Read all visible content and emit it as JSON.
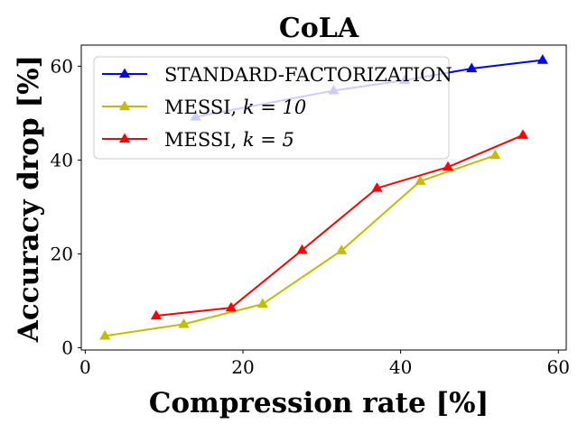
{
  "chart_data": {
    "type": "line",
    "title": "CoLA",
    "xlabel": "Compression rate [%]",
    "ylabel": "Accuracy drop [%]",
    "xlim": [
      -0.5,
      61
    ],
    "ylim": [
      -0.5,
      64.5
    ],
    "xticks": [
      0,
      20,
      40,
      60
    ],
    "yticks": [
      0,
      20,
      40,
      60
    ],
    "xtick_labels": [
      "0",
      "20",
      "40",
      "60"
    ],
    "ytick_labels": [
      "0",
      "20",
      "40",
      "60"
    ],
    "legend_position": "upper-left",
    "series": [
      {
        "name": "Standard-Factorization",
        "legend_label": "STANDARD-FACTORIZATION",
        "color": "#0000ff",
        "marker": "triangle-up",
        "x": [
          14,
          31.5,
          40.5,
          49,
          58
        ],
        "y": [
          49.2,
          54.8,
          57.0,
          59.5,
          61.3
        ]
      },
      {
        "name": "MESSI, k=10",
        "legend_text": "MESSI,",
        "legend_math": "k = 10",
        "color": "#bfbf00",
        "marker": "triangle-up",
        "x": [
          2.5,
          12.5,
          22.5,
          32.5,
          42.5,
          52
        ],
        "y": [
          2.5,
          5.0,
          9.3,
          20.7,
          35.5,
          41.0
        ]
      },
      {
        "name": "MESSI, k=5",
        "legend_text": "MESSI,",
        "legend_math": "k = 5",
        "color": "#ff0000",
        "marker": "triangle-up",
        "x": [
          9,
          18.5,
          27.5,
          37,
          46,
          55.5
        ],
        "y": [
          6.8,
          8.5,
          20.8,
          34.0,
          38.5,
          45.3
        ]
      }
    ]
  }
}
